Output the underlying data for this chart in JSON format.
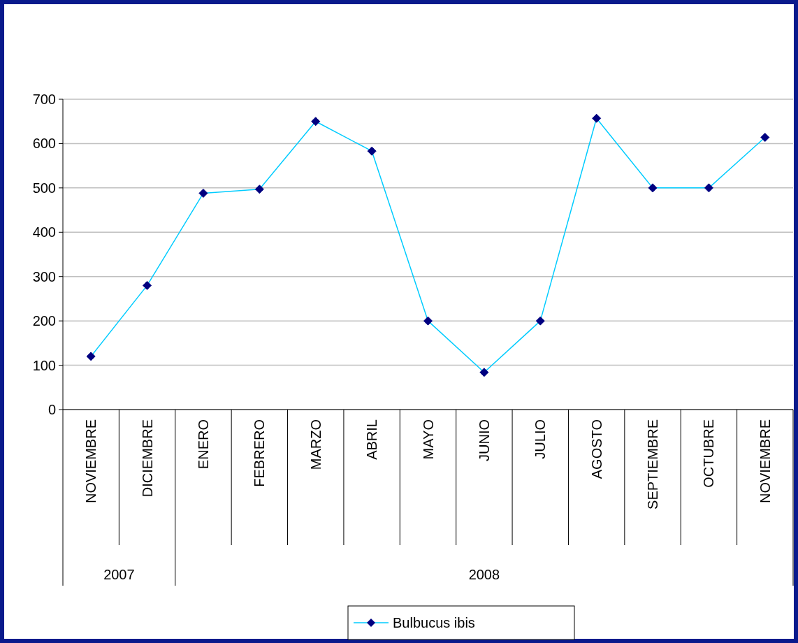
{
  "chart_data": {
    "type": "line",
    "categories": [
      "NOVIEMBRE",
      "DICIEMBRE",
      "ENERO",
      "FEBRERO",
      "MARZO",
      "ABRIL",
      "MAYO",
      "JUNIO",
      "JULIO",
      "AGOSTO",
      "SEPTIEMBRE",
      "OCTUBRE",
      "NOVIEMBRE"
    ],
    "series": [
      {
        "name": "Bulbucus ibis",
        "color": "#00ccff",
        "values": [
          120,
          280,
          488,
          497,
          650,
          583,
          200,
          84,
          200,
          657,
          500,
          500,
          614
        ]
      }
    ],
    "ylim": [
      0,
      700
    ],
    "yticks": [
      0,
      100,
      200,
      300,
      400,
      500,
      600,
      700
    ],
    "grid": "y",
    "legend": "bottom",
    "marker": "diamond",
    "line_style": "solid",
    "annotations": [
      "2007",
      "2008"
    ]
  }
}
